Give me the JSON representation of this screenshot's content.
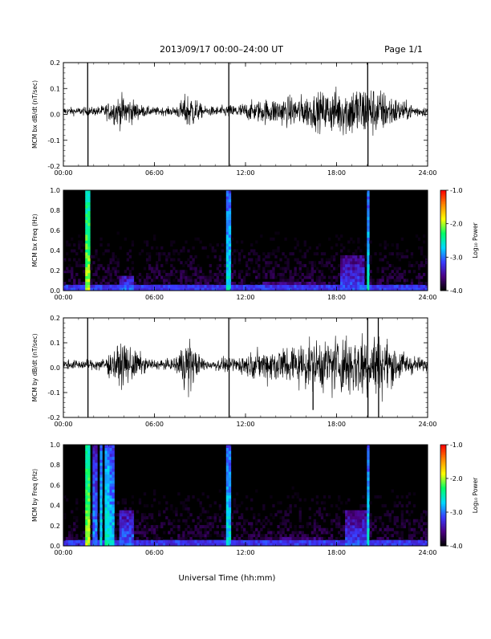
{
  "header": {
    "title": "2013/09/17  00:00–24:00 UT",
    "page": "Page 1/1"
  },
  "xlabel": "Universal Time (hh:mm)",
  "xticks": [
    "00:00",
    "06:00",
    "12:00",
    "18:00",
    "24:00"
  ],
  "colors": {
    "background": "#ffffff",
    "trace": "#000000",
    "spectrogram_bg": "#000000"
  },
  "colorbar": {
    "label": "Log₁₀ Power",
    "ticks": [
      "-1.0",
      "-2.0",
      "-3.0",
      "-4.0"
    ],
    "range": [
      -4.0,
      -1.0
    ],
    "colormap": [
      "#000000",
      "#4b0082",
      "#3a3aff",
      "#00d8ff",
      "#00ff66",
      "#ffff00",
      "#ff8800",
      "#ff0000"
    ]
  },
  "chart_data": [
    {
      "type": "line",
      "ylabel": "MCM bx dB/dt (nT/sec)",
      "xlim": [
        0,
        24
      ],
      "ylim": [
        -0.2,
        0.2
      ],
      "yticks": [
        "0.2",
        "0.1",
        "0.0",
        "-0.1",
        "-0.2"
      ],
      "xticks": [
        "00:00",
        "06:00",
        "12:00",
        "18:00",
        "24:00"
      ],
      "baseline_amplitude": 0.015,
      "activity": [
        {
          "t": 3.9,
          "w": 1.0,
          "a": 0.045
        },
        {
          "t": 8.3,
          "w": 0.6,
          "a": 0.055
        },
        {
          "t": 14.5,
          "w": 3.0,
          "a": 0.035
        },
        {
          "t": 18.6,
          "w": 2.5,
          "a": 0.055
        },
        {
          "t": 20.5,
          "w": 2.0,
          "a": 0.045
        }
      ],
      "spikes": [
        {
          "t": 1.6,
          "v": 0.2
        },
        {
          "t": 1.62,
          "v": -0.2
        },
        {
          "t": 10.9,
          "v": 0.2
        },
        {
          "t": 10.92,
          "v": -0.2
        },
        {
          "t": 20.05,
          "v": 0.2
        },
        {
          "t": 20.07,
          "v": -0.2
        }
      ]
    },
    {
      "type": "heatmap",
      "ylabel": "MCM bx Freq (Hz)",
      "xlim": [
        0,
        24
      ],
      "ylim": [
        0.0,
        1.0
      ],
      "yticks": [
        "1.0",
        "0.8",
        "0.6",
        "0.4",
        "0.2",
        "0.0"
      ],
      "xticks": [
        "00:00",
        "06:00",
        "12:00",
        "18:00",
        "24:00"
      ],
      "value_range": [
        -4.0,
        -1.0
      ],
      "features": [
        {
          "t": 1.6,
          "w": 0.1,
          "fmax": 1.0,
          "v": -2.0
        },
        {
          "t": 10.9,
          "w": 0.1,
          "fmax": 1.0,
          "v": -2.6
        },
        {
          "t": 20.05,
          "w": 0.1,
          "fmax": 1.0,
          "v": -2.6
        },
        {
          "t": 4.2,
          "w": 0.8,
          "fmax": 0.15,
          "v": -3.0
        },
        {
          "t": 19.0,
          "w": 1.5,
          "fmax": 0.35,
          "v": -3.1
        },
        {
          "t": 15.0,
          "w": 3.5,
          "fmax": 0.1,
          "v": -3.3
        }
      ]
    },
    {
      "type": "line",
      "ylabel": "MCM by dB/dt (nT/sec)",
      "xlim": [
        0,
        24
      ],
      "ylim": [
        -0.2,
        0.2
      ],
      "yticks": [
        "0.2",
        "0.1",
        "0.0",
        "-0.1",
        "-0.2"
      ],
      "xticks": [
        "00:00",
        "06:00",
        "12:00",
        "18:00",
        "24:00"
      ],
      "baseline_amplitude": 0.018,
      "activity": [
        {
          "t": 4.0,
          "w": 1.1,
          "a": 0.06
        },
        {
          "t": 8.2,
          "w": 0.6,
          "a": 0.09
        },
        {
          "t": 14.8,
          "w": 3.0,
          "a": 0.055
        },
        {
          "t": 18.7,
          "w": 2.5,
          "a": 0.07
        },
        {
          "t": 20.6,
          "w": 2.0,
          "a": 0.06
        }
      ],
      "spikes": [
        {
          "t": 1.6,
          "v": 0.2
        },
        {
          "t": 1.62,
          "v": -0.2
        },
        {
          "t": 10.9,
          "v": 0.2
        },
        {
          "t": 10.92,
          "v": -0.2
        },
        {
          "t": 20.05,
          "v": 0.2
        },
        {
          "t": 20.07,
          "v": -0.2
        },
        {
          "t": 20.75,
          "v": 0.2
        },
        {
          "t": 20.77,
          "v": -0.2
        },
        {
          "t": 16.45,
          "v": -0.17
        }
      ]
    },
    {
      "type": "heatmap",
      "ylabel": "MCM by Freq (Hz)",
      "xlim": [
        0,
        24
      ],
      "ylim": [
        0.0,
        1.0
      ],
      "yticks": [
        "1.0",
        "0.8",
        "0.6",
        "0.4",
        "0.2",
        "0.0"
      ],
      "xticks": [
        "00:00",
        "06:00",
        "12:00",
        "18:00",
        "24:00"
      ],
      "value_range": [
        -4.0,
        -1.0
      ],
      "features": [
        {
          "t": 1.6,
          "w": 0.1,
          "fmax": 1.0,
          "v": -2.0
        },
        {
          "t": 2.1,
          "w": 0.12,
          "fmax": 1.0,
          "v": -2.9
        },
        {
          "t": 2.5,
          "w": 0.12,
          "fmax": 1.0,
          "v": -2.6
        },
        {
          "t": 2.9,
          "w": 0.12,
          "fmax": 1.0,
          "v": -2.5
        },
        {
          "t": 3.2,
          "w": 0.12,
          "fmax": 1.0,
          "v": -2.7
        },
        {
          "t": 10.9,
          "w": 0.1,
          "fmax": 1.0,
          "v": -2.6
        },
        {
          "t": 20.05,
          "w": 0.1,
          "fmax": 1.0,
          "v": -2.6
        },
        {
          "t": 4.2,
          "w": 0.8,
          "fmax": 0.35,
          "v": -3.0
        },
        {
          "t": 19.3,
          "w": 1.5,
          "fmax": 0.35,
          "v": -3.1
        },
        {
          "t": 15.0,
          "w": 4.0,
          "fmax": 0.1,
          "v": -3.3
        }
      ]
    }
  ]
}
